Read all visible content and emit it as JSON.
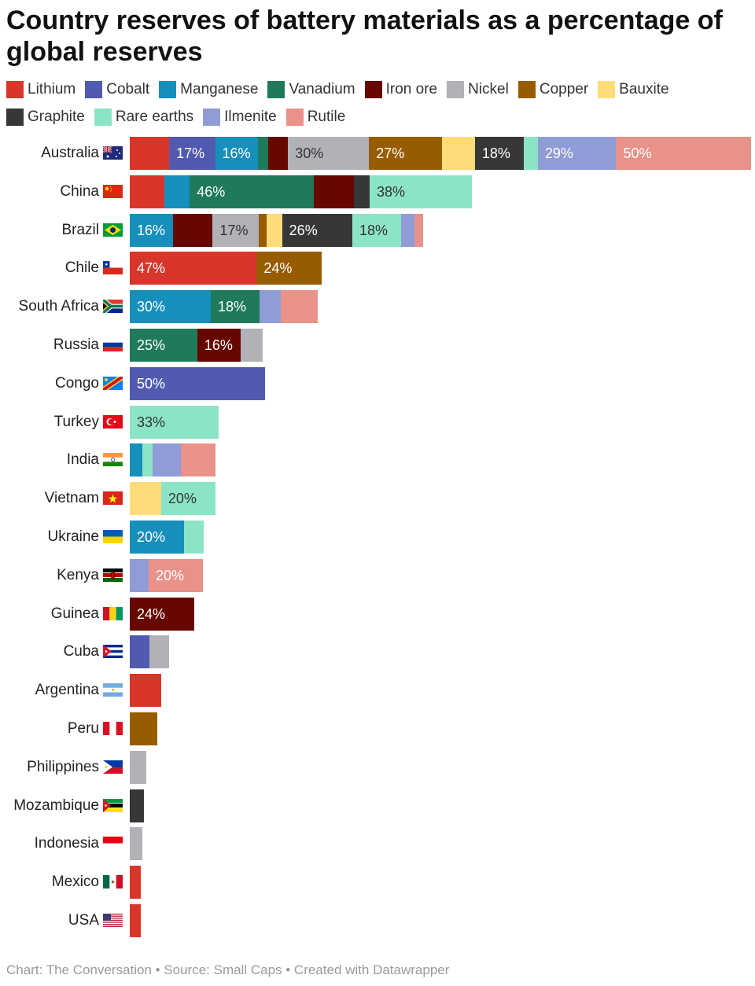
{
  "title": "Country reserves of battery materials as a percentage of global reserves",
  "footer": "Chart: The Conversation • Source: Small Caps • Created with Datawrapper",
  "chart_data": {
    "type": "bar",
    "orientation": "horizontal-stacked",
    "unit": "% of global reserves",
    "legend_position": "top",
    "materials": [
      {
        "name": "Lithium",
        "color": "#d9362b",
        "text": "#ffffff"
      },
      {
        "name": "Cobalt",
        "color": "#515ab0",
        "text": "#ffffff"
      },
      {
        "name": "Manganese",
        "color": "#168fba",
        "text": "#ffffff"
      },
      {
        "name": "Vanadium",
        "color": "#1f7a5b",
        "text": "#ffffff"
      },
      {
        "name": "Iron ore",
        "color": "#660800",
        "text": "#ffffff"
      },
      {
        "name": "Nickel",
        "color": "#b1b1b8",
        "text": "#333333"
      },
      {
        "name": "Copper",
        "color": "#985c00",
        "text": "#ffffff"
      },
      {
        "name": "Bauxite",
        "color": "#ffdc78",
        "text": "#333333"
      },
      {
        "name": "Graphite",
        "color": "#373737",
        "text": "#ffffff"
      },
      {
        "name": "Rare earths",
        "color": "#8ce4c8",
        "text": "#333333"
      },
      {
        "name": "Ilmenite",
        "color": "#8f9cd6",
        "text": "#ffffff"
      },
      {
        "name": "Rutile",
        "color": "#e8928a",
        "text": "#ffffff"
      }
    ],
    "countries": [
      {
        "name": "Australia",
        "segments": [
          {
            "m": 0,
            "v": 14.6
          },
          {
            "m": 1,
            "v": 17,
            "label": "17%"
          },
          {
            "m": 2,
            "v": 16,
            "label": "16%"
          },
          {
            "m": 3,
            "v": 3.6
          },
          {
            "m": 4,
            "v": 7.4
          },
          {
            "m": 5,
            "v": 30,
            "label": "30%"
          },
          {
            "m": 6,
            "v": 27,
            "label": "27%"
          },
          {
            "m": 7,
            "v": 12.2
          },
          {
            "m": 8,
            "v": 18,
            "label": "18%"
          },
          {
            "m": 9,
            "v": 5.3
          },
          {
            "m": 10,
            "v": 29,
            "label": "29%"
          },
          {
            "m": 11,
            "v": 50,
            "label": "50%"
          }
        ]
      },
      {
        "name": "China",
        "segments": [
          {
            "m": 0,
            "v": 12.8
          },
          {
            "m": 2,
            "v": 9.4
          },
          {
            "m": 3,
            "v": 46,
            "label": "46%"
          },
          {
            "m": 4,
            "v": 14.7
          },
          {
            "m": 8,
            "v": 5.9
          },
          {
            "m": 9,
            "v": 38,
            "label": "38%"
          }
        ]
      },
      {
        "name": "Brazil",
        "segments": [
          {
            "m": 2,
            "v": 16,
            "label": "16%"
          },
          {
            "m": 4,
            "v": 14.7
          },
          {
            "m": 5,
            "v": 17,
            "label": "17%"
          },
          {
            "m": 6,
            "v": 3.1
          },
          {
            "m": 7,
            "v": 5.6
          },
          {
            "m": 8,
            "v": 26,
            "label": "26%"
          },
          {
            "m": 9,
            "v": 18,
            "label": "18%"
          },
          {
            "m": 10,
            "v": 4.9
          },
          {
            "m": 11,
            "v": 3.3
          }
        ]
      },
      {
        "name": "Chile",
        "segments": [
          {
            "m": 0,
            "v": 47,
            "label": "47%"
          },
          {
            "m": 6,
            "v": 24,
            "label": "24%"
          }
        ]
      },
      {
        "name": "South Africa",
        "segments": [
          {
            "m": 2,
            "v": 30,
            "label": "30%"
          },
          {
            "m": 3,
            "v": 18,
            "label": "18%"
          },
          {
            "m": 10,
            "v": 7.8
          },
          {
            "m": 11,
            "v": 13.7
          }
        ]
      },
      {
        "name": "Russia",
        "segments": [
          {
            "m": 3,
            "v": 25,
            "label": "25%"
          },
          {
            "m": 4,
            "v": 16,
            "label": "16%"
          },
          {
            "m": 5,
            "v": 8.3
          }
        ]
      },
      {
        "name": "Congo",
        "segments": [
          {
            "m": 1,
            "v": 50,
            "label": "50%"
          }
        ]
      },
      {
        "name": "Turkey",
        "segments": [
          {
            "m": 9,
            "v": 33,
            "label": "33%"
          }
        ]
      },
      {
        "name": "India",
        "segments": [
          {
            "m": 2,
            "v": 4.7
          },
          {
            "m": 9,
            "v": 3.7
          },
          {
            "m": 10,
            "v": 10.5
          },
          {
            "m": 11,
            "v": 12.8
          }
        ]
      },
      {
        "name": "Vietnam",
        "segments": [
          {
            "m": 7,
            "v": 11.6
          },
          {
            "m": 9,
            "v": 20,
            "label": "20%"
          }
        ]
      },
      {
        "name": "Ukraine",
        "segments": [
          {
            "m": 2,
            "v": 20,
            "label": "20%"
          },
          {
            "m": 9,
            "v": 7.3
          }
        ]
      },
      {
        "name": "Kenya",
        "segments": [
          {
            "m": 10,
            "v": 7
          },
          {
            "m": 11,
            "v": 20,
            "label": "20%"
          }
        ]
      },
      {
        "name": "Guinea",
        "segments": [
          {
            "m": 4,
            "v": 24,
            "label": "24%"
          }
        ]
      },
      {
        "name": "Cuba",
        "segments": [
          {
            "m": 1,
            "v": 7.3
          },
          {
            "m": 5,
            "v": 7.3
          }
        ]
      },
      {
        "name": "Argentina",
        "segments": [
          {
            "m": 0,
            "v": 11.6
          }
        ]
      },
      {
        "name": "Peru",
        "segments": [
          {
            "m": 6,
            "v": 10.2
          }
        ]
      },
      {
        "name": "Philippines",
        "segments": [
          {
            "m": 5,
            "v": 6.1
          }
        ]
      },
      {
        "name": "Mozambique",
        "segments": [
          {
            "m": 8,
            "v": 5.2
          }
        ]
      },
      {
        "name": "Indonesia",
        "segments": [
          {
            "m": 5,
            "v": 4.7
          }
        ]
      },
      {
        "name": "Mexico",
        "segments": [
          {
            "m": 0,
            "v": 4.1
          }
        ]
      },
      {
        "name": "USA",
        "segments": [
          {
            "m": 0,
            "v": 4.1
          }
        ]
      }
    ]
  }
}
